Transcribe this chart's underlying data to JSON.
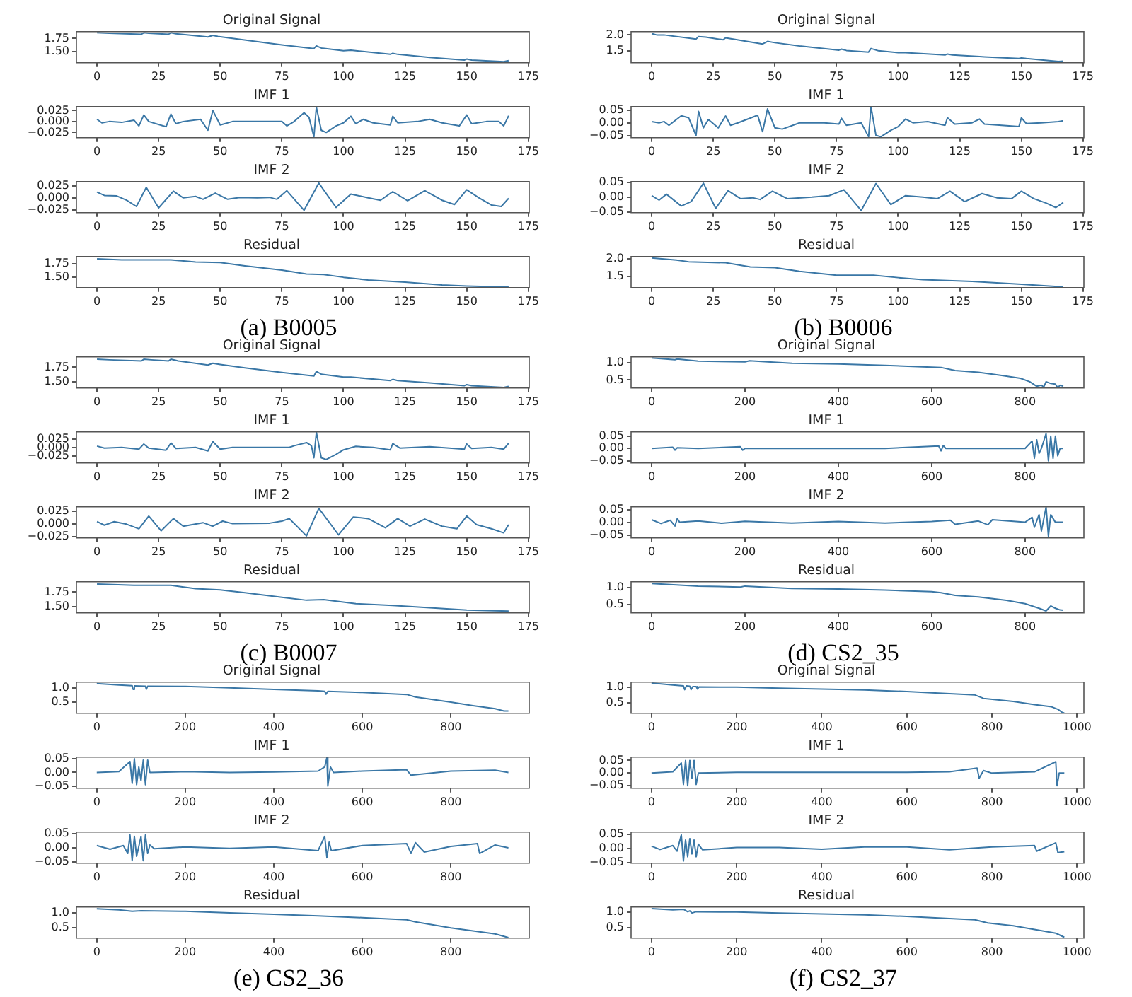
{
  "chart_data": [
    {
      "type": "line",
      "title": "Original Signal",
      "color": "#3a77a6",
      "xlim": [
        -8.35,
        175.35
      ],
      "xticks": [
        0,
        25,
        50,
        75,
        100,
        125,
        150,
        175
      ],
      "ylim": [
        1.29,
        1.88
      ],
      "yticks": [
        {
          "value": 1.5,
          "label": "1.50"
        },
        {
          "value": 1.75,
          "label": "1.75"
        }
      ],
      "x": [
        0,
        5,
        18,
        19,
        21,
        29,
        30,
        32,
        45,
        47,
        49,
        75,
        88,
        89,
        91,
        100,
        103,
        119,
        120,
        122,
        135,
        149,
        150,
        152,
        165,
        167
      ],
      "values": [
        1.86,
        1.85,
        1.83,
        1.86,
        1.85,
        1.83,
        1.86,
        1.84,
        1.78,
        1.81,
        1.79,
        1.63,
        1.56,
        1.61,
        1.57,
        1.52,
        1.53,
        1.45,
        1.47,
        1.45,
        1.39,
        1.34,
        1.36,
        1.34,
        1.31,
        1.33
      ]
    },
    {
      "type": "line",
      "title": "IMF 1",
      "color": "#3a77a6",
      "xlim": [
        -8.35,
        175.35
      ],
      "xticks": [
        0,
        25,
        50,
        75,
        100,
        125,
        150,
        175
      ],
      "ylim": [
        -0.037,
        0.034
      ],
      "yticks": [
        {
          "value": -0.025,
          "label": "−0.025"
        },
        {
          "value": 0,
          "label": "0.000"
        },
        {
          "value": 0.025,
          "label": "0.025"
        }
      ],
      "x": [
        0,
        2,
        5,
        10,
        15,
        17,
        19,
        21,
        28,
        30,
        32,
        35,
        42,
        45,
        47,
        50,
        55,
        65,
        75,
        77,
        80,
        84,
        86,
        88,
        89,
        91,
        93,
        97,
        100,
        103,
        105,
        108,
        112,
        119,
        120,
        122,
        130,
        135,
        140,
        147,
        150,
        152,
        158,
        163,
        165,
        167
      ],
      "values": [
        0.005,
        -0.003,
        0,
        -0.002,
        0.003,
        -0.01,
        0.015,
        0,
        -0.012,
        0.017,
        -0.005,
        0,
        0.005,
        -0.02,
        0.025,
        -0.008,
        0,
        0,
        0,
        -0.01,
        0,
        0.02,
        0.01,
        -0.035,
        0.033,
        -0.02,
        -0.025,
        -0.01,
        -0.003,
        0.012,
        -0.005,
        0.005,
        -0.003,
        -0.008,
        0.012,
        -0.003,
        0,
        0.005,
        -0.003,
        -0.01,
        0.015,
        -0.005,
        0,
        0,
        -0.01,
        0.013
      ]
    },
    {
      "type": "line",
      "title": "IMF 2",
      "color": "#3a77a6",
      "xlim": [
        -8.35,
        175.35
      ],
      "xticks": [
        0,
        25,
        50,
        75,
        100,
        125,
        150,
        175
      ],
      "ylim": [
        -0.031,
        0.034
      ],
      "yticks": [
        {
          "value": -0.025,
          "label": "−0.025"
        },
        {
          "value": 0,
          "label": "0.000"
        },
        {
          "value": 0.025,
          "label": "0.025"
        }
      ],
      "x": [
        0,
        3,
        8,
        12,
        16,
        20,
        25,
        31,
        35,
        40,
        43,
        48,
        53,
        58,
        65,
        70,
        73,
        77,
        84,
        90,
        97,
        103,
        110,
        115,
        120,
        126,
        133,
        140,
        145,
        150,
        155,
        160,
        164,
        167
      ],
      "values": [
        0.012,
        0.005,
        0.004,
        -0.005,
        -0.018,
        0.022,
        -0.021,
        0.014,
        0,
        0.003,
        -0.003,
        0.01,
        -0.003,
        0.001,
        0,
        0.001,
        -0.003,
        0.015,
        -0.026,
        0.031,
        -0.02,
        0.008,
        0,
        -0.005,
        0.013,
        -0.006,
        0.015,
        -0.005,
        -0.014,
        0.017,
        0,
        -0.015,
        -0.018,
        -0.001
      ]
    },
    {
      "type": "line",
      "title": "Residual",
      "color": "#3a77a6",
      "xlim": [
        -8.35,
        175.35
      ],
      "xticks": [
        0,
        25,
        50,
        75,
        100,
        125,
        150,
        175
      ],
      "ylim": [
        1.31,
        1.88
      ],
      "yticks": [
        {
          "value": 1.5,
          "label": "1.50"
        },
        {
          "value": 1.75,
          "label": "1.75"
        }
      ],
      "annotations": [
        "(a)  B0005"
      ],
      "x": [
        0,
        10,
        30,
        40,
        50,
        60,
        75,
        85,
        92,
        100,
        110,
        125,
        140,
        150,
        167
      ],
      "values": [
        1.84,
        1.82,
        1.82,
        1.78,
        1.77,
        1.71,
        1.63,
        1.56,
        1.55,
        1.5,
        1.45,
        1.41,
        1.36,
        1.34,
        1.32
      ]
    },
    {
      "type": "line",
      "title": "Original Signal",
      "color": "#3a77a6",
      "xlim": [
        -8.35,
        175.35
      ],
      "xticks": [
        0,
        25,
        50,
        75,
        100,
        125,
        150,
        175
      ],
      "ylim": [
        1.14,
        2.1
      ],
      "yticks": [
        1.5,
        {
          "value": 2,
          "label": "2.0"
        }
      ],
      "x": [
        0,
        2,
        5,
        18,
        19,
        22,
        29,
        30,
        33,
        45,
        47,
        50,
        60,
        76,
        77,
        79,
        88,
        89,
        92,
        100,
        103,
        119,
        120,
        122,
        133,
        135,
        149,
        150,
        152,
        165,
        167
      ],
      "values": [
        2.04,
        2.0,
        2.0,
        1.87,
        1.95,
        1.93,
        1.85,
        1.91,
        1.87,
        1.72,
        1.8,
        1.76,
        1.66,
        1.53,
        1.56,
        1.52,
        1.47,
        1.58,
        1.51,
        1.45,
        1.45,
        1.38,
        1.41,
        1.38,
        1.33,
        1.32,
        1.27,
        1.29,
        1.27,
        1.18,
        1.19
      ]
    },
    {
      "type": "line",
      "title": "IMF 1",
      "color": "#3a77a6",
      "xlim": [
        -8.35,
        175.35
      ],
      "xticks": [
        0,
        25,
        50,
        75,
        100,
        125,
        150,
        175
      ],
      "ylim": [
        -0.059,
        0.064
      ],
      "yticks": [
        {
          "value": -0.05,
          "label": "−0.05"
        },
        {
          "value": 0,
          "label": "0.00"
        },
        0.05
      ],
      "x": [
        0,
        3,
        5,
        7,
        12,
        15,
        18,
        19,
        21,
        23,
        27,
        30,
        32,
        35,
        43,
        45,
        47,
        50,
        53,
        60,
        70,
        76,
        77,
        79,
        85,
        88,
        89,
        91,
        93,
        97,
        100,
        103,
        106,
        112,
        119,
        120,
        123,
        130,
        133,
        135,
        149,
        150,
        152,
        158,
        165,
        167
      ],
      "values": [
        0.005,
        0,
        0.005,
        -0.01,
        0.028,
        0.02,
        -0.05,
        0.045,
        -0.02,
        0.013,
        -0.02,
        0.027,
        -0.01,
        0,
        0.03,
        -0.035,
        0.055,
        -0.02,
        -0.025,
        0,
        0,
        -0.005,
        0.018,
        -0.01,
        0,
        -0.055,
        0.063,
        -0.05,
        -0.055,
        -0.03,
        -0.015,
        0.015,
        0,
        0.005,
        -0.01,
        0.02,
        -0.005,
        0,
        0.015,
        -0.005,
        -0.015,
        0.02,
        -0.003,
        0,
        0.005,
        0.008
      ]
    },
    {
      "type": "line",
      "title": "IMF 2",
      "color": "#3a77a6",
      "xlim": [
        -8.35,
        175.35
      ],
      "xticks": [
        0,
        25,
        50,
        75,
        100,
        125,
        150,
        175
      ],
      "ylim": [
        -0.0525,
        0.0525
      ],
      "yticks": [
        {
          "value": -0.05,
          "label": "−0.05"
        },
        {
          "value": 0,
          "label": "0.00"
        },
        0.05
      ],
      "x": [
        0,
        3,
        6,
        12,
        16,
        21,
        26,
        31,
        36,
        41,
        44,
        49,
        55,
        65,
        72,
        78,
        85,
        91,
        97,
        103,
        110,
        116,
        121,
        127,
        134,
        140,
        146,
        150,
        155,
        160,
        164,
        167
      ],
      "values": [
        0.005,
        -0.01,
        0.01,
        -0.03,
        -0.015,
        0.047,
        -0.038,
        0.022,
        -0.005,
        -0.002,
        -0.008,
        0.02,
        -0.005,
        0,
        0.005,
        0.025,
        -0.045,
        0.046,
        -0.025,
        0.005,
        0,
        -0.005,
        0.02,
        -0.015,
        0.012,
        -0.002,
        -0.005,
        0.02,
        -0.005,
        -0.02,
        -0.035,
        -0.018
      ]
    },
    {
      "type": "line",
      "title": "Residual",
      "color": "#3a77a6",
      "xlim": [
        -8.35,
        175.35
      ],
      "xticks": [
        0,
        25,
        50,
        75,
        100,
        125,
        150,
        175
      ],
      "ylim": [
        1.17,
        2.07
      ],
      "yticks": [
        1.5,
        {
          "value": 2,
          "label": "2.0"
        }
      ],
      "annotations": [
        "(b)  B0006"
      ],
      "x": [
        0,
        10,
        15,
        30,
        40,
        50,
        60,
        75,
        90,
        100,
        110,
        130,
        150,
        167
      ],
      "values": [
        2.03,
        1.97,
        1.92,
        1.89,
        1.77,
        1.75,
        1.64,
        1.53,
        1.53,
        1.46,
        1.4,
        1.35,
        1.27,
        1.19
      ]
    },
    {
      "type": "line",
      "title": "Original Signal",
      "color": "#3a77a6",
      "xlim": [
        -8.35,
        175.35
      ],
      "xticks": [
        0,
        25,
        50,
        75,
        100,
        125,
        150,
        175
      ],
      "ylim": [
        1.39,
        1.93
      ],
      "yticks": [
        {
          "value": 1.5,
          "label": "1.50"
        },
        {
          "value": 1.75,
          "label": "1.75"
        }
      ],
      "x": [
        0,
        5,
        18,
        19,
        22,
        29,
        30,
        33,
        45,
        47,
        50,
        60,
        75,
        88,
        89,
        91,
        100,
        103,
        119,
        120,
        122,
        135,
        149,
        150,
        152,
        165,
        167
      ],
      "values": [
        1.89,
        1.88,
        1.86,
        1.89,
        1.88,
        1.86,
        1.89,
        1.86,
        1.79,
        1.82,
        1.8,
        1.74,
        1.66,
        1.6,
        1.68,
        1.63,
        1.58,
        1.58,
        1.52,
        1.54,
        1.52,
        1.48,
        1.43,
        1.45,
        1.43,
        1.4,
        1.42
      ]
    },
    {
      "type": "line",
      "title": "IMF 1",
      "color": "#3a77a6",
      "xlim": [
        -8.35,
        175.35
      ],
      "xticks": [
        0,
        25,
        50,
        75,
        100,
        125,
        150,
        175
      ],
      "ylim": [
        -0.045,
        0.045
      ],
      "yticks": [
        {
          "value": -0.025,
          "label": "−0.025"
        },
        {
          "value": 0,
          "label": "0.000"
        },
        {
          "value": 0.025,
          "label": "0.025"
        }
      ],
      "x": [
        0,
        3,
        10,
        17,
        19,
        21,
        28,
        30,
        32,
        40,
        45,
        47,
        50,
        55,
        70,
        78,
        80,
        85,
        87,
        88,
        89,
        91,
        93,
        97,
        100,
        105,
        112,
        119,
        120,
        123,
        135,
        149,
        150,
        152,
        160,
        165,
        167
      ],
      "values": [
        0.004,
        -0.002,
        0,
        -0.005,
        0.01,
        -0.002,
        -0.008,
        0.013,
        -0.003,
        0,
        -0.01,
        0.017,
        -0.005,
        0,
        0,
        0,
        0.005,
        0.014,
        0.005,
        -0.03,
        0.044,
        -0.03,
        -0.035,
        -0.02,
        -0.007,
        0.003,
        0,
        -0.007,
        0.011,
        -0.002,
        0.002,
        -0.005,
        0.01,
        -0.003,
        0,
        -0.005,
        0.012
      ]
    },
    {
      "type": "line",
      "title": "IMF 2",
      "color": "#3a77a6",
      "xlim": [
        -8.35,
        175.35
      ],
      "xticks": [
        0,
        25,
        50,
        75,
        100,
        125,
        150,
        175
      ],
      "ylim": [
        -0.028,
        0.033
      ],
      "yticks": [
        {
          "value": -0.025,
          "label": "−0.025"
        },
        {
          "value": 0,
          "label": "0.000"
        },
        {
          "value": 0.025,
          "label": "0.025"
        }
      ],
      "x": [
        0,
        3,
        7,
        12,
        17,
        21,
        26,
        31,
        35,
        43,
        47,
        51,
        55,
        70,
        75,
        78,
        85,
        90,
        98,
        104,
        110,
        117,
        122,
        127,
        133,
        140,
        146,
        150,
        154,
        160,
        165,
        167
      ],
      "values": [
        0.004,
        -0.003,
        0.004,
        -0.001,
        -0.01,
        0.015,
        -0.014,
        0.01,
        -0.005,
        0.002,
        -0.005,
        0.005,
        0,
        0.001,
        0.005,
        0.01,
        -0.024,
        0.03,
        -0.022,
        0.013,
        0.01,
        -0.008,
        0.01,
        -0.005,
        0.009,
        -0.005,
        -0.01,
        0.015,
        -0.002,
        -0.01,
        -0.018,
        -0.002
      ]
    },
    {
      "type": "line",
      "title": "Residual",
      "color": "#3a77a6",
      "xlim": [
        -8.35,
        175.35
      ],
      "xticks": [
        0,
        25,
        50,
        75,
        100,
        125,
        150,
        175
      ],
      "ylim": [
        1.39,
        1.93
      ],
      "yticks": [
        {
          "value": 1.5,
          "label": "1.50"
        },
        {
          "value": 1.75,
          "label": "1.75"
        }
      ],
      "annotations": [
        "(c)  B0007"
      ],
      "x": [
        0,
        15,
        30,
        40,
        50,
        60,
        75,
        85,
        92,
        105,
        120,
        135,
        150,
        167
      ],
      "values": [
        1.89,
        1.87,
        1.87,
        1.81,
        1.79,
        1.74,
        1.66,
        1.61,
        1.62,
        1.55,
        1.52,
        1.48,
        1.44,
        1.42
      ]
    },
    {
      "type": "line",
      "title": "Original Signal",
      "color": "#3a77a6",
      "xlim": [
        -44,
        926
      ],
      "xticks": [
        0,
        200,
        400,
        600,
        800
      ],
      "ylim": [
        0.27,
        1.16
      ],
      "yticks": [
        0.5,
        {
          "value": 1,
          "label": "1.0"
        }
      ],
      "x": [
        0,
        50,
        55,
        100,
        200,
        210,
        300,
        400,
        500,
        600,
        620,
        650,
        700,
        750,
        790,
        810,
        825,
        835,
        840,
        845,
        855,
        865,
        870,
        875,
        882
      ],
      "values": [
        1.13,
        1.08,
        1.1,
        1.04,
        1.02,
        1.05,
        0.98,
        0.96,
        0.92,
        0.87,
        0.86,
        0.77,
        0.72,
        0.63,
        0.55,
        0.45,
        0.32,
        0.35,
        0.3,
        0.45,
        0.4,
        0.38,
        0.28,
        0.35,
        0.32
      ]
    },
    {
      "type": "line",
      "title": "IMF 1",
      "color": "#3a77a6",
      "xlim": [
        -44,
        926
      ],
      "xticks": [
        0,
        200,
        400,
        600,
        800
      ],
      "ylim": [
        -0.059,
        0.067
      ],
      "yticks": [
        {
          "value": -0.05,
          "label": "−0.05"
        },
        {
          "value": 0,
          "label": "0.00"
        },
        0.05
      ],
      "x": [
        0,
        45,
        50,
        55,
        100,
        190,
        195,
        200,
        300,
        400,
        500,
        615,
        620,
        625,
        630,
        700,
        800,
        815,
        820,
        825,
        830,
        835,
        845,
        850,
        855,
        860,
        865,
        870,
        875,
        882
      ],
      "values": [
        0,
        0.005,
        -0.007,
        0.003,
        0,
        0.007,
        -0.007,
        0,
        0,
        0,
        0,
        0.01,
        -0.01,
        0.012,
        0,
        0,
        0,
        0.03,
        -0.04,
        0.035,
        -0.02,
        0,
        0.06,
        -0.05,
        0.05,
        -0.04,
        0.05,
        -0.03,
        0,
        0
      ]
    },
    {
      "type": "line",
      "title": "IMF 2",
      "color": "#3a77a6",
      "xlim": [
        -44,
        926
      ],
      "xticks": [
        0,
        200,
        400,
        600,
        800
      ],
      "ylim": [
        -0.062,
        0.061
      ],
      "yticks": [
        {
          "value": -0.05,
          "label": "−0.05"
        },
        {
          "value": 0,
          "label": "0.00"
        },
        0.05
      ],
      "x": [
        0,
        20,
        40,
        50,
        55,
        60,
        100,
        150,
        200,
        300,
        400,
        500,
        600,
        640,
        650,
        700,
        720,
        730,
        800,
        815,
        820,
        830,
        835,
        845,
        850,
        855,
        865,
        882
      ],
      "values": [
        0.01,
        -0.005,
        0.008,
        -0.015,
        0.015,
        0,
        0.005,
        -0.004,
        0.004,
        -0.003,
        0.003,
        -0.003,
        0.003,
        0.008,
        -0.008,
        0.005,
        -0.01,
        0.01,
        0,
        0.02,
        -0.02,
        0.03,
        -0.035,
        0.06,
        -0.055,
        0.03,
        0,
        0
      ]
    },
    {
      "type": "line",
      "title": "Residual",
      "color": "#3a77a6",
      "xlim": [
        -44,
        926
      ],
      "xticks": [
        0,
        200,
        400,
        600,
        800
      ],
      "ylim": [
        0.24,
        1.18
      ],
      "yticks": [
        0.5,
        {
          "value": 1,
          "label": "1.0"
        }
      ],
      "annotations": [
        "(d)  CS2_35"
      ],
      "x": [
        0,
        100,
        190,
        200,
        300,
        400,
        500,
        600,
        620,
        650,
        700,
        760,
        800,
        830,
        845,
        855,
        865,
        875,
        882
      ],
      "values": [
        1.13,
        1.05,
        1.02,
        1.05,
        0.98,
        0.96,
        0.93,
        0.88,
        0.85,
        0.77,
        0.72,
        0.62,
        0.52,
        0.38,
        0.3,
        0.45,
        0.38,
        0.33,
        0.32
      ]
    },
    {
      "type": "line",
      "title": "Original Signal",
      "color": "#3a77a6",
      "xlim": [
        -46,
        977
      ],
      "xticks": [
        0,
        200,
        400,
        600,
        800
      ],
      "ylim": [
        0.11,
        1.2
      ],
      "yticks": [
        0.5,
        {
          "value": 1,
          "label": "1.0"
        }
      ],
      "x": [
        0,
        50,
        80,
        82,
        85,
        110,
        112,
        115,
        200,
        300,
        400,
        500,
        515,
        518,
        522,
        600,
        700,
        720,
        800,
        850,
        900,
        920,
        930
      ],
      "values": [
        1.15,
        1.1,
        1.08,
        0.95,
        1.07,
        1.06,
        0.95,
        1.06,
        1.05,
        1.0,
        0.95,
        0.9,
        0.88,
        0.78,
        0.88,
        0.84,
        0.77,
        0.68,
        0.5,
        0.38,
        0.27,
        0.19,
        0.19
      ]
    },
    {
      "type": "line",
      "title": "IMF 1",
      "color": "#3a77a6",
      "xlim": [
        -46,
        977
      ],
      "xticks": [
        0,
        200,
        400,
        600,
        800
      ],
      "ylim": [
        -0.058,
        0.056
      ],
      "yticks": [
        {
          "value": -0.05,
          "label": "−0.05"
        },
        {
          "value": 0,
          "label": "0.00"
        },
        0.05
      ],
      "x": [
        0,
        50,
        75,
        80,
        85,
        90,
        95,
        100,
        105,
        110,
        115,
        120,
        200,
        300,
        400,
        500,
        515,
        520,
        522,
        528,
        535,
        600,
        700,
        710,
        800,
        900,
        930
      ],
      "values": [
        0,
        0.003,
        0.04,
        -0.04,
        0.05,
        -0.045,
        0.02,
        -0.03,
        0.045,
        -0.045,
        0.045,
        0,
        0.003,
        0,
        0.002,
        0.005,
        0.02,
        0.055,
        -0.05,
        0.02,
        0,
        0.005,
        0.01,
        -0.01,
        0.005,
        0.008,
        0
      ]
    },
    {
      "type": "line",
      "title": "IMF 2",
      "color": "#3a77a6",
      "xlim": [
        -46,
        977
      ],
      "xticks": [
        0,
        200,
        400,
        600,
        800
      ],
      "ylim": [
        -0.054,
        0.055
      ],
      "yticks": [
        {
          "value": -0.05,
          "label": "−0.05"
        },
        {
          "value": 0,
          "label": "0.00"
        },
        0.05
      ],
      "x": [
        0,
        30,
        60,
        70,
        75,
        80,
        85,
        90,
        100,
        105,
        110,
        115,
        120,
        130,
        200,
        300,
        400,
        500,
        515,
        520,
        525,
        530,
        600,
        700,
        710,
        720,
        740,
        800,
        860,
        865,
        900,
        930
      ],
      "values": [
        0.008,
        -0.005,
        0.008,
        -0.02,
        0.045,
        -0.045,
        0.04,
        -0.03,
        0.04,
        -0.045,
        0.045,
        -0.02,
        0.01,
        -0.003,
        0.003,
        -0.002,
        0.003,
        -0.01,
        0.04,
        -0.035,
        0.02,
        -0.01,
        0.008,
        0.015,
        -0.02,
        0.018,
        -0.015,
        0.005,
        0.015,
        -0.02,
        0.01,
        0
      ]
    },
    {
      "type": "line",
      "title": "Residual",
      "color": "#3a77a6",
      "xlim": [
        -46,
        977
      ],
      "xticks": [
        0,
        200,
        400,
        600,
        800
      ],
      "ylim": [
        0.16,
        1.19
      ],
      "yticks": [
        0.5,
        {
          "value": 1,
          "label": "1.0"
        }
      ],
      "annotations": [
        "(e)  CS2_36"
      ],
      "x": [
        0,
        50,
        80,
        100,
        200,
        300,
        400,
        500,
        600,
        700,
        720,
        800,
        900,
        930
      ],
      "values": [
        1.13,
        1.1,
        1.05,
        1.07,
        1.05,
        1.0,
        0.95,
        0.9,
        0.84,
        0.77,
        0.7,
        0.5,
        0.3,
        0.18
      ]
    },
    {
      "type": "line",
      "title": "Original Signal",
      "color": "#3a77a6",
      "xlim": [
        -48,
        1016
      ],
      "xticks": [
        0,
        200,
        400,
        600,
        800,
        1000
      ],
      "ylim": [
        0.17,
        1.17
      ],
      "yticks": [
        0.5,
        {
          "value": 1,
          "label": "1.0"
        }
      ],
      "x": [
        0,
        50,
        75,
        78,
        82,
        90,
        93,
        97,
        105,
        108,
        112,
        200,
        300,
        400,
        500,
        600,
        700,
        760,
        780,
        850,
        900,
        940,
        955,
        965,
        970
      ],
      "values": [
        1.14,
        1.08,
        1.05,
        0.93,
        1.05,
        1.04,
        0.93,
        1.03,
        1.03,
        0.95,
        1.02,
        1.01,
        0.98,
        0.95,
        0.92,
        0.87,
        0.8,
        0.76,
        0.65,
        0.55,
        0.45,
        0.38,
        0.3,
        0.2,
        0.18
      ]
    },
    {
      "type": "line",
      "title": "IMF 1",
      "color": "#3a77a6",
      "xlim": [
        -48,
        1016
      ],
      "xticks": [
        0,
        200,
        400,
        600,
        800,
        1000
      ],
      "ylim": [
        -0.06,
        0.063
      ],
      "yticks": [
        {
          "value": -0.05,
          "label": "−0.05"
        },
        {
          "value": 0,
          "label": "0.00"
        },
        0.05
      ],
      "x": [
        0,
        50,
        70,
        75,
        80,
        85,
        90,
        95,
        100,
        105,
        110,
        200,
        400,
        600,
        700,
        765,
        770,
        780,
        800,
        900,
        950,
        953,
        958,
        970
      ],
      "values": [
        0,
        0.005,
        0.04,
        -0.045,
        0.05,
        -0.05,
        0.05,
        -0.02,
        0.05,
        -0.045,
        0,
        0.003,
        0.003,
        0.003,
        0.005,
        0.02,
        -0.02,
        0.01,
        0,
        0.005,
        0.045,
        -0.05,
        0,
        0
      ]
    },
    {
      "type": "line",
      "title": "IMF 2",
      "color": "#3a77a6",
      "xlim": [
        -48,
        1016
      ],
      "xticks": [
        0,
        200,
        400,
        600,
        800,
        1000
      ],
      "ylim": [
        -0.053,
        0.058
      ],
      "yticks": [
        {
          "value": -0.05,
          "label": "−0.05"
        },
        {
          "value": 0,
          "label": "0.00"
        },
        0.05
      ],
      "x": [
        0,
        20,
        50,
        60,
        70,
        75,
        80,
        85,
        90,
        95,
        100,
        105,
        110,
        120,
        200,
        300,
        400,
        500,
        600,
        700,
        800,
        900,
        905,
        950,
        955,
        970
      ],
      "values": [
        0.008,
        -0.004,
        0.01,
        -0.01,
        0.048,
        -0.045,
        0.03,
        -0.03,
        0.035,
        -0.02,
        0.03,
        -0.03,
        0.015,
        -0.005,
        0.003,
        0.003,
        -0.003,
        0.005,
        0.005,
        -0.005,
        0.005,
        0.01,
        -0.01,
        0.02,
        -0.015,
        -0.012
      ]
    },
    {
      "type": "line",
      "title": "Residual",
      "color": "#3a77a6",
      "xlim": [
        -48,
        1016
      ],
      "xticks": [
        0,
        200,
        400,
        600,
        800,
        1000
      ],
      "ylim": [
        0.17,
        1.17
      ],
      "yticks": [
        0.5,
        {
          "value": 1,
          "label": "1.0"
        }
      ],
      "annotations": [
        "(f)  CS2_37"
      ],
      "x": [
        0,
        50,
        75,
        85,
        90,
        95,
        105,
        200,
        300,
        400,
        500,
        600,
        700,
        760,
        790,
        850,
        900,
        950,
        970
      ],
      "values": [
        1.12,
        1.08,
        1.1,
        1.02,
        1.05,
        0.98,
        1.02,
        1.01,
        0.98,
        0.95,
        0.92,
        0.87,
        0.8,
        0.76,
        0.66,
        0.57,
        0.45,
        0.33,
        0.2
      ]
    }
  ]
}
